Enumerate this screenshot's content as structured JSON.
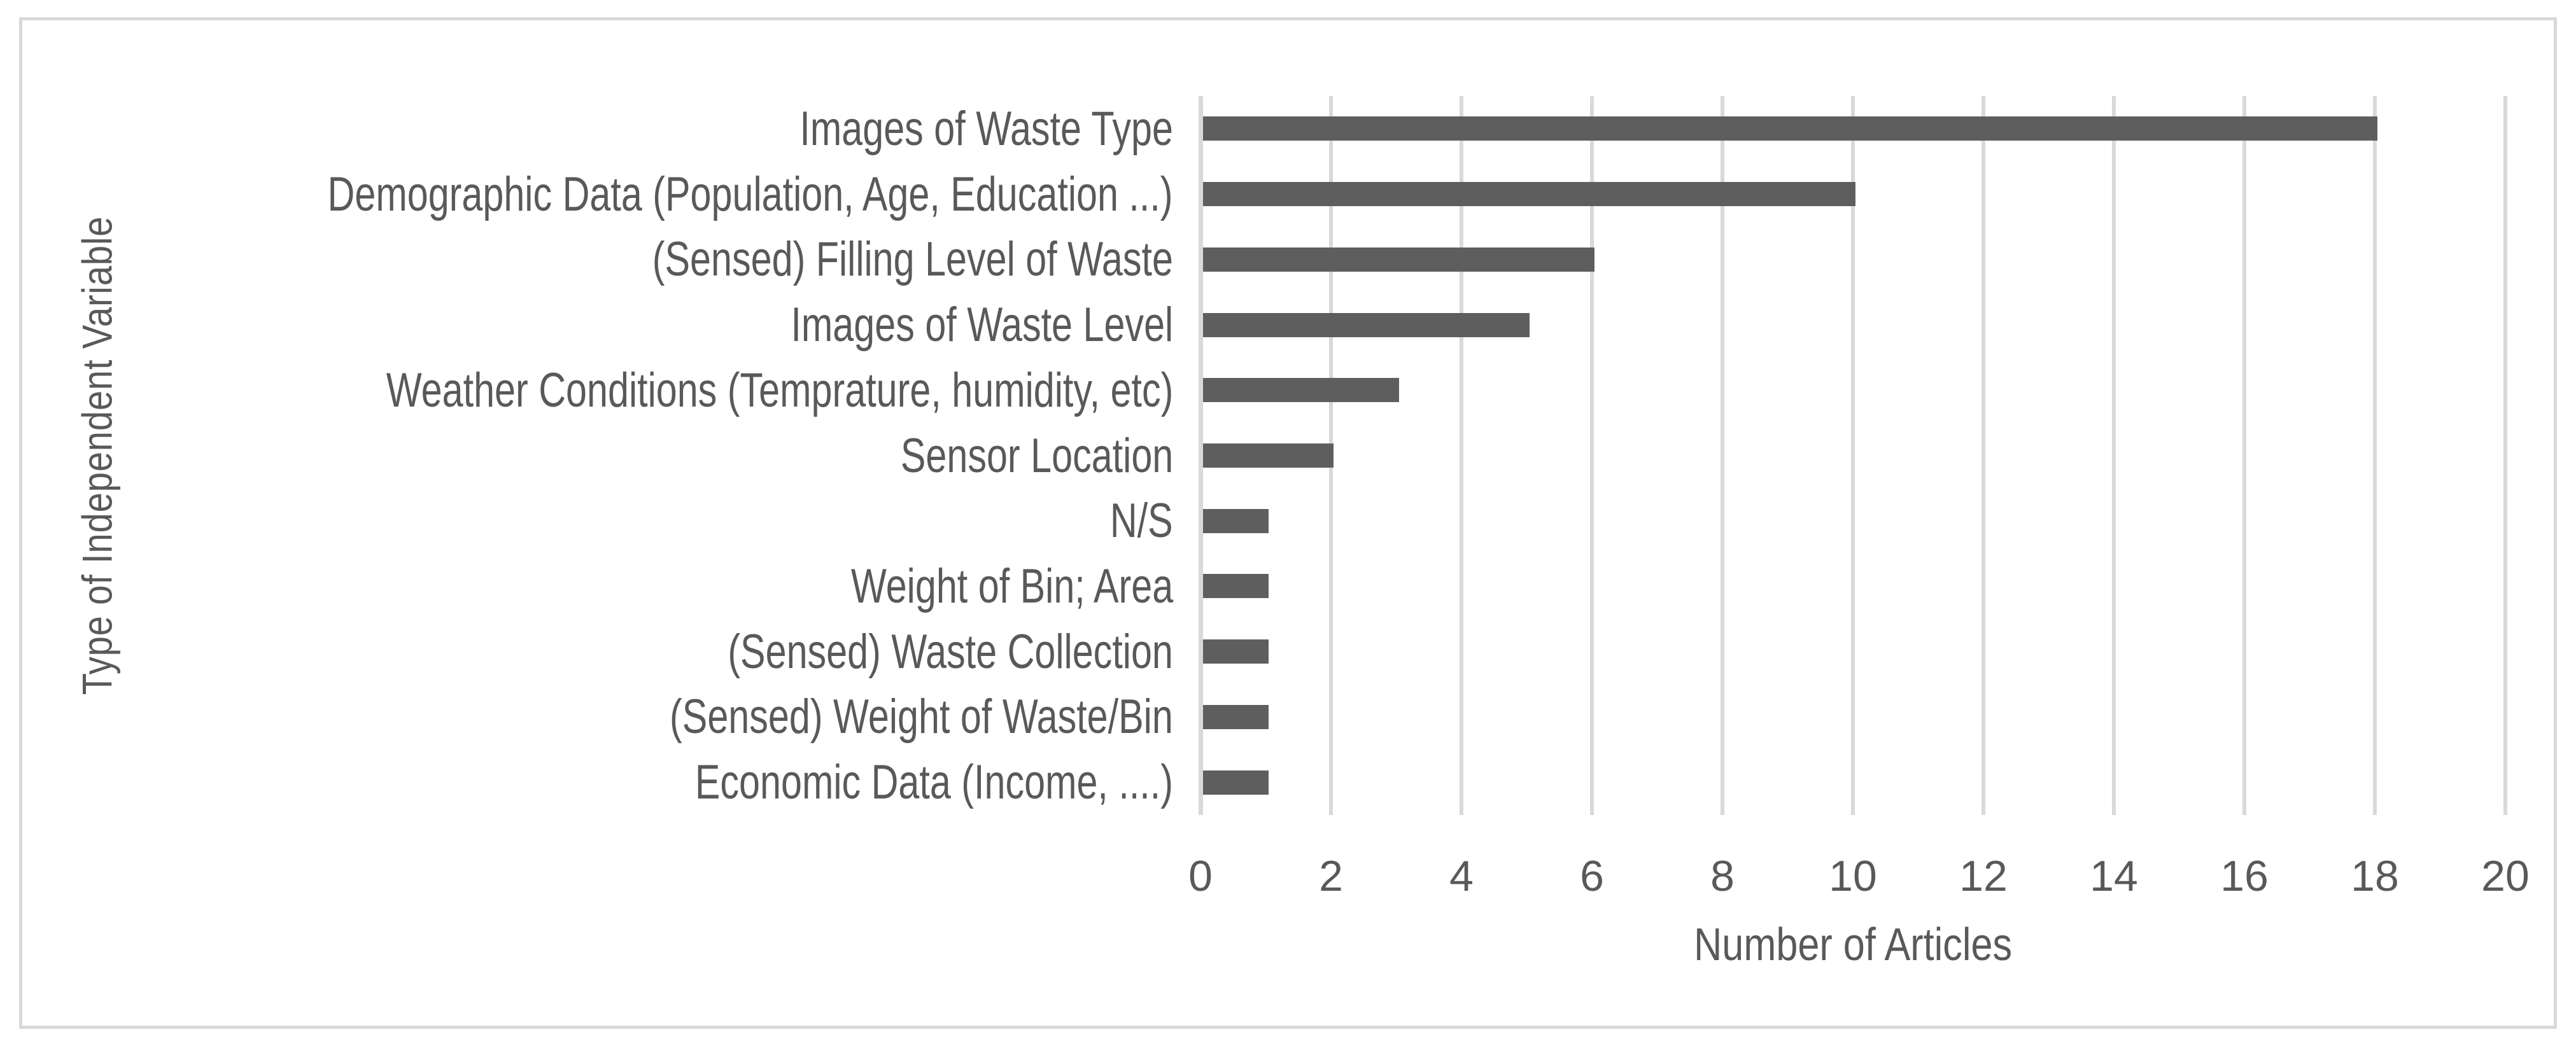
{
  "chart_data": {
    "type": "bar",
    "orientation": "horizontal",
    "title": "",
    "xlabel": "Number of Articles",
    "ylabel": "Type of Independent Variable",
    "categories": [
      "Images of Waste Type",
      "Demographic Data (Population, Age, Education ...)",
      "(Sensed) Filling Level of Waste",
      "Images of Waste Level",
      "Weather Conditions (Temprature, humidity, etc)",
      "Sensor Location",
      "N/S",
      "Weight of Bin; Area",
      "(Sensed) Waste Collection",
      "(Sensed) Weight of Waste/Bin",
      "Economic Data (Income, ....)"
    ],
    "values": [
      18,
      10,
      6,
      5,
      3,
      2,
      1,
      1,
      1,
      1,
      1
    ],
    "xlim": [
      0,
      20
    ],
    "xticks": [
      0,
      2,
      4,
      6,
      8,
      10,
      12,
      14,
      16,
      18,
      20
    ],
    "grid": true,
    "legend": "none",
    "colors": {
      "bar": "#5E5E5E",
      "gridline": "#D9D9D9",
      "axis_line": "#D9D9D9",
      "text": "#595959",
      "frame_border": "#D9D9D9",
      "background": "#FFFFFF"
    }
  }
}
